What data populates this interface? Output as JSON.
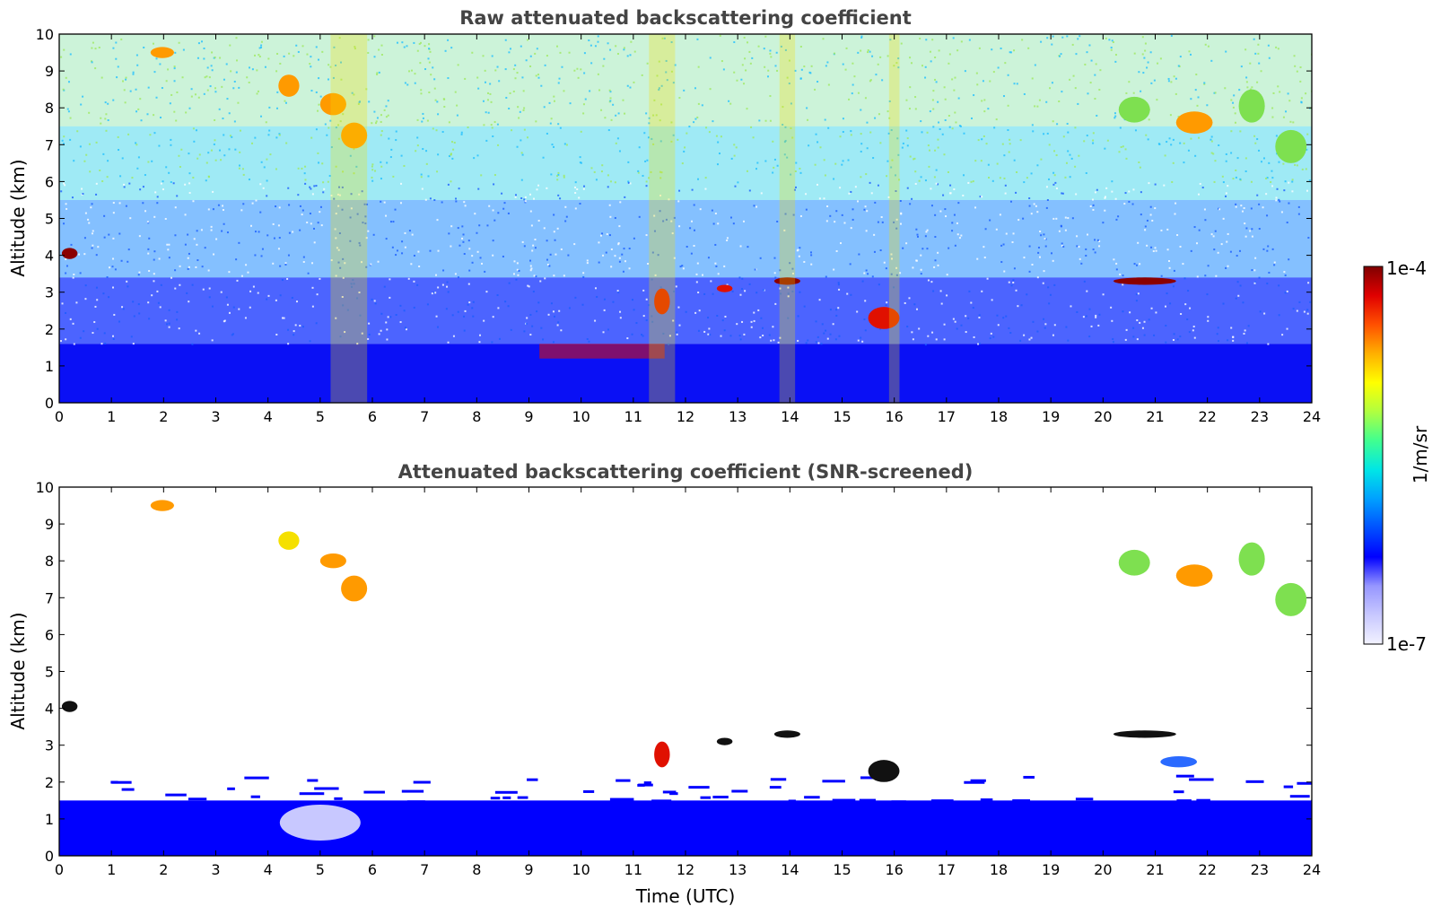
{
  "chart_data": [
    {
      "type": "heatmap",
      "title": "Raw attenuated backscattering coefficient",
      "xlabel": "",
      "ylabel": "Altitude (km)",
      "xlim": [
        0,
        24
      ],
      "ylim": [
        0,
        10
      ],
      "x_ticks": [
        "0",
        "1",
        "2",
        "3",
        "4",
        "5",
        "6",
        "7",
        "8",
        "9",
        "10",
        "11",
        "12",
        "13",
        "14",
        "15",
        "16",
        "17",
        "18",
        "19",
        "20",
        "21",
        "22",
        "23",
        "24"
      ],
      "y_ticks": [
        "0",
        "1",
        "2",
        "3",
        "4",
        "5",
        "6",
        "7",
        "8",
        "9",
        "10"
      ],
      "screened": false,
      "features": [
        {
          "kind": "cloud",
          "t_start": 4.2,
          "t_end": 4.6,
          "alt_low": 8.3,
          "alt_high": 8.9,
          "level": "orange"
        },
        {
          "kind": "cloud",
          "t_start": 5.0,
          "t_end": 5.5,
          "alt_low": 7.8,
          "alt_high": 8.4,
          "level": "orange"
        },
        {
          "kind": "cloud",
          "t_start": 5.4,
          "t_end": 5.9,
          "alt_low": 6.9,
          "alt_high": 7.6,
          "level": "orange"
        },
        {
          "kind": "cloud",
          "t_start": 1.75,
          "t_end": 2.2,
          "alt_low": 9.35,
          "alt_high": 9.65,
          "level": "orange"
        },
        {
          "kind": "cloud",
          "t_start": 20.3,
          "t_end": 20.9,
          "alt_low": 7.6,
          "alt_high": 8.3,
          "level": "green"
        },
        {
          "kind": "cloud",
          "t_start": 21.4,
          "t_end": 22.1,
          "alt_low": 7.3,
          "alt_high": 7.9,
          "level": "orange"
        },
        {
          "kind": "cloud",
          "t_start": 22.6,
          "t_end": 23.1,
          "alt_low": 7.6,
          "alt_high": 8.5,
          "level": "green"
        },
        {
          "kind": "cloud",
          "t_start": 23.3,
          "t_end": 23.9,
          "alt_low": 6.5,
          "alt_high": 7.4,
          "level": "green"
        },
        {
          "kind": "cloud",
          "t_start": 0.05,
          "t_end": 0.35,
          "alt_low": 3.9,
          "alt_high": 4.2,
          "level": "dark-red"
        },
        {
          "kind": "cloud",
          "t_start": 11.4,
          "t_end": 11.7,
          "alt_low": 2.4,
          "alt_high": 3.1,
          "level": "red"
        },
        {
          "kind": "cloud",
          "t_start": 13.7,
          "t_end": 14.2,
          "alt_low": 3.2,
          "alt_high": 3.4,
          "level": "dark-red"
        },
        {
          "kind": "cloud",
          "t_start": 15.5,
          "t_end": 16.1,
          "alt_low": 2.0,
          "alt_high": 2.6,
          "level": "red"
        },
        {
          "kind": "cloud",
          "t_start": 20.2,
          "t_end": 21.4,
          "alt_low": 3.2,
          "alt_high": 3.4,
          "level": "dark-red"
        },
        {
          "kind": "cloud",
          "t_start": 12.6,
          "t_end": 12.9,
          "alt_low": 3.0,
          "alt_high": 3.2,
          "level": "red"
        },
        {
          "kind": "streak",
          "t_start": 9.2,
          "t_end": 11.6,
          "alt_low": 1.2,
          "alt_high": 1.6,
          "level": "red"
        },
        {
          "kind": "column",
          "t_start": 5.2,
          "t_end": 5.9,
          "alt_low": 0,
          "alt_high": 10,
          "level": "yellow"
        },
        {
          "kind": "column",
          "t_start": 11.3,
          "t_end": 11.8,
          "alt_low": 0,
          "alt_high": 10,
          "level": "yellow"
        },
        {
          "kind": "column",
          "t_start": 13.8,
          "t_end": 14.1,
          "alt_low": 0,
          "alt_high": 10,
          "level": "yellow"
        },
        {
          "kind": "column",
          "t_start": 15.9,
          "t_end": 16.1,
          "alt_low": 0,
          "alt_high": 10,
          "level": "yellow"
        }
      ]
    },
    {
      "type": "heatmap",
      "title": "Attenuated backscattering coefficient (SNR-screened)",
      "xlabel": "Time (UTC)",
      "ylabel": "Altitude (km)",
      "xlim": [
        0,
        24
      ],
      "ylim": [
        0,
        10
      ],
      "x_ticks": [
        "0",
        "1",
        "2",
        "3",
        "4",
        "5",
        "6",
        "7",
        "8",
        "9",
        "10",
        "11",
        "12",
        "13",
        "14",
        "15",
        "16",
        "17",
        "18",
        "19",
        "20",
        "21",
        "22",
        "23",
        "24"
      ],
      "y_ticks": [
        "0",
        "1",
        "2",
        "3",
        "4",
        "5",
        "6",
        "7",
        "8",
        "9",
        "10"
      ],
      "screened": true,
      "features": [
        {
          "kind": "cloud",
          "t_start": 4.2,
          "t_end": 4.6,
          "alt_low": 8.3,
          "alt_high": 8.8,
          "level": "yellow"
        },
        {
          "kind": "cloud",
          "t_start": 5.0,
          "t_end": 5.5,
          "alt_low": 7.8,
          "alt_high": 8.2,
          "level": "orange"
        },
        {
          "kind": "cloud",
          "t_start": 5.4,
          "t_end": 5.9,
          "alt_low": 6.9,
          "alt_high": 7.6,
          "level": "orange"
        },
        {
          "kind": "cloud",
          "t_start": 1.75,
          "t_end": 2.2,
          "alt_low": 9.35,
          "alt_high": 9.65,
          "level": "orange"
        },
        {
          "kind": "cloud",
          "t_start": 20.3,
          "t_end": 20.9,
          "alt_low": 7.6,
          "alt_high": 8.3,
          "level": "green"
        },
        {
          "kind": "cloud",
          "t_start": 21.4,
          "t_end": 22.1,
          "alt_low": 7.3,
          "alt_high": 7.9,
          "level": "orange"
        },
        {
          "kind": "cloud",
          "t_start": 22.6,
          "t_end": 23.1,
          "alt_low": 7.6,
          "alt_high": 8.5,
          "level": "green"
        },
        {
          "kind": "cloud",
          "t_start": 23.3,
          "t_end": 23.9,
          "alt_low": 6.5,
          "alt_high": 7.4,
          "level": "green"
        },
        {
          "kind": "cloud",
          "t_start": 0.05,
          "t_end": 0.35,
          "alt_low": 3.9,
          "alt_high": 4.2,
          "level": "black"
        },
        {
          "kind": "cloud",
          "t_start": 11.4,
          "t_end": 11.7,
          "alt_low": 2.4,
          "alt_high": 3.1,
          "level": "red"
        },
        {
          "kind": "cloud",
          "t_start": 13.7,
          "t_end": 14.2,
          "alt_low": 3.2,
          "alt_high": 3.4,
          "level": "black"
        },
        {
          "kind": "cloud",
          "t_start": 15.5,
          "t_end": 16.1,
          "alt_low": 2.0,
          "alt_high": 2.6,
          "level": "black"
        },
        {
          "kind": "cloud",
          "t_start": 20.2,
          "t_end": 21.4,
          "alt_low": 3.2,
          "alt_high": 3.4,
          "level": "black"
        },
        {
          "kind": "cloud",
          "t_start": 12.6,
          "t_end": 12.9,
          "alt_low": 3.0,
          "alt_high": 3.2,
          "level": "black"
        },
        {
          "kind": "cloud",
          "t_start": 21.1,
          "t_end": 21.8,
          "alt_low": 2.4,
          "alt_high": 2.7,
          "level": "blue"
        }
      ]
    }
  ],
  "colorbar": {
    "label": "1/m/sr",
    "max_label": "1e-4",
    "min_label": "1e-7",
    "scale": "log",
    "range": [
      1e-07,
      0.0001
    ],
    "colormap": [
      "#f2f2ff",
      "#c8c8ff",
      "#9696ff",
      "#0000ff",
      "#0050ff",
      "#00a0ff",
      "#00e6e6",
      "#40ff90",
      "#b0ff40",
      "#ffff00",
      "#ffb000",
      "#ff5000",
      "#e00000",
      "#800000"
    ]
  },
  "colors": {
    "background": "#ffffff",
    "title": "#444444",
    "boundary_layer": "#0000ff"
  }
}
